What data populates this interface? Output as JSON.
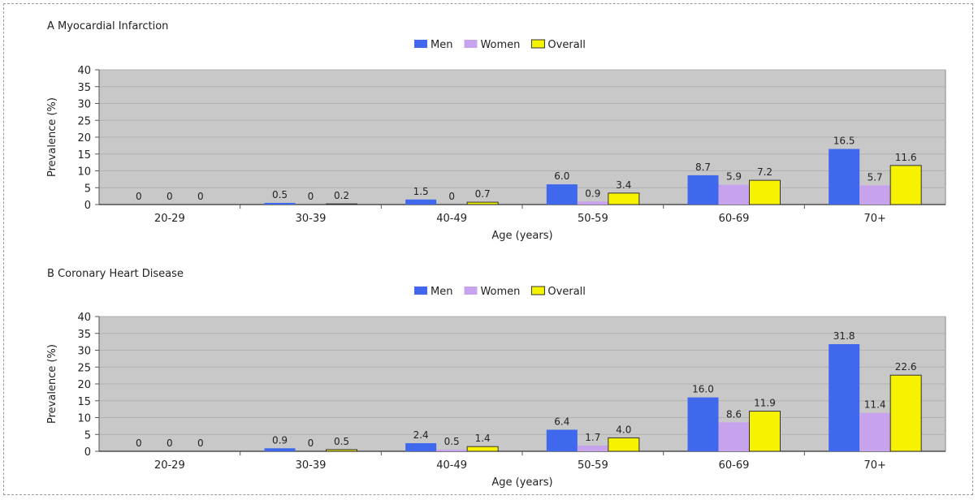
{
  "chart_data": [
    {
      "type": "bar",
      "title": "A Myocardial Infarction",
      "xlabel": "Age (years)",
      "ylabel": "Prevalence (%)",
      "ylim": [
        0,
        40
      ],
      "yticks": [
        0,
        5,
        10,
        15,
        20,
        25,
        30,
        35,
        40
      ],
      "categories": [
        "20-29",
        "30-39",
        "40-49",
        "50-59",
        "60-69",
        "70+"
      ],
      "legend_position": "top-center",
      "series": [
        {
          "name": "Men",
          "color": "#3f68ec",
          "values": [
            0,
            0.5,
            1.5,
            6.0,
            8.7,
            16.5
          ],
          "labels": [
            "0",
            "0.5",
            "1.5",
            "6.0",
            "8.7",
            "16.5"
          ]
        },
        {
          "name": "Women",
          "color": "#c7a3ee",
          "values": [
            0,
            0,
            0,
            0.9,
            5.9,
            5.7
          ],
          "labels": [
            "0",
            "0",
            "0",
            "0.9",
            "5.9",
            "5.7"
          ]
        },
        {
          "name": "Overall",
          "color": "#f6f200",
          "values": [
            0,
            0.2,
            0.7,
            3.4,
            7.2,
            11.6
          ],
          "labels": [
            "0",
            "0.2",
            "0.7",
            "3.4",
            "7.2",
            "11.6"
          ]
        }
      ]
    },
    {
      "type": "bar",
      "title": "B Coronary Heart Disease",
      "xlabel": "Age (years)",
      "ylabel": "Prevalence (%)",
      "ylim": [
        0,
        40
      ],
      "yticks": [
        0,
        5,
        10,
        15,
        20,
        25,
        30,
        35,
        40
      ],
      "categories": [
        "20-29",
        "30-39",
        "40-49",
        "50-59",
        "60-69",
        "70+"
      ],
      "legend_position": "top-center",
      "series": [
        {
          "name": "Men",
          "color": "#3f68ec",
          "values": [
            0,
            0.9,
            2.4,
            6.4,
            16.0,
            31.8
          ],
          "labels": [
            "0",
            "0.9",
            "2.4",
            "6.4",
            "16.0",
            "31.8"
          ]
        },
        {
          "name": "Women",
          "color": "#c7a3ee",
          "values": [
            0,
            0,
            0.5,
            1.7,
            8.6,
            11.4
          ],
          "labels": [
            "0",
            "0",
            "0.5",
            "1.7",
            "8.6",
            "11.4"
          ]
        },
        {
          "name": "Overall",
          "color": "#f6f200",
          "values": [
            0,
            0.5,
            1.4,
            4.0,
            11.9,
            22.6
          ],
          "labels": [
            "0",
            "0.5",
            "1.4",
            "4.0",
            "11.9",
            "22.6"
          ]
        }
      ]
    }
  ]
}
